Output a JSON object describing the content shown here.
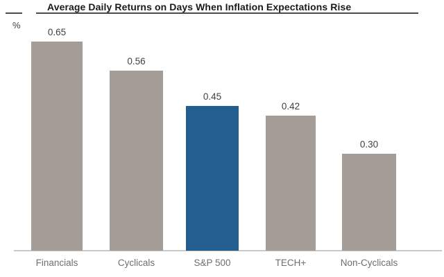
{
  "chart_data": {
    "type": "bar",
    "title": "Average Daily Returns on Days When Inflation Expectations Rise",
    "ylabel": "%",
    "xlabel": "",
    "categories": [
      "Financials",
      "Cyclicals",
      "S&P 500",
      "TECH+",
      "Non-Cyclicals"
    ],
    "values": [
      0.65,
      0.56,
      0.45,
      0.42,
      0.3
    ],
    "value_labels": [
      "0.65",
      "0.56",
      "0.45",
      "0.42",
      "0.30"
    ],
    "ylim": [
      0,
      0.78
    ],
    "grid": false,
    "legend_position": "none",
    "highlight_category": "S&P 500",
    "bar_colors": [
      "#a49d97",
      "#a49d97",
      "#235e8e",
      "#a49d97",
      "#a49d97"
    ]
  },
  "colors": {
    "background": "#ffffff",
    "title_text": "#1a1a1a",
    "rule": "#4a4a4a",
    "axis_line": "#cbc8c5",
    "value_text": "#404040",
    "category_text": "#6e6e6e",
    "unit_text": "#3f3f3f",
    "bar_gray": "#a49d97",
    "bar_blue": "#235e8e"
  }
}
